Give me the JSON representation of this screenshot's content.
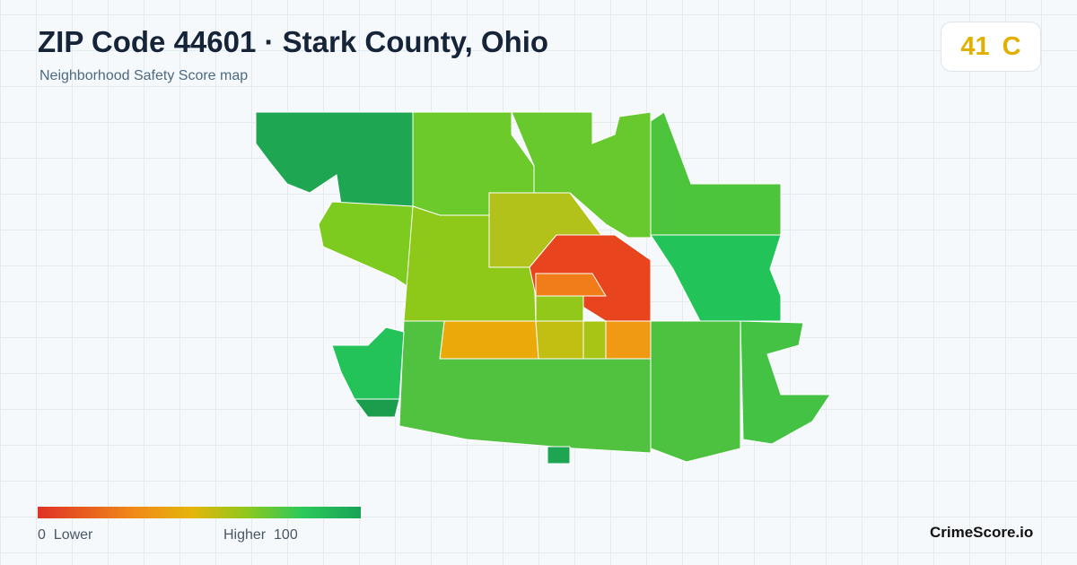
{
  "header": {
    "title": "ZIP Code 44601 · Stark County, Ohio",
    "subtitle": "Neighborhood Safety Score map"
  },
  "score": {
    "value": 41,
    "grade": "C"
  },
  "legend": {
    "min": 0,
    "min_label": "Lower",
    "max_label": "Higher",
    "max": 100
  },
  "brand": "CrimeScore.io"
}
